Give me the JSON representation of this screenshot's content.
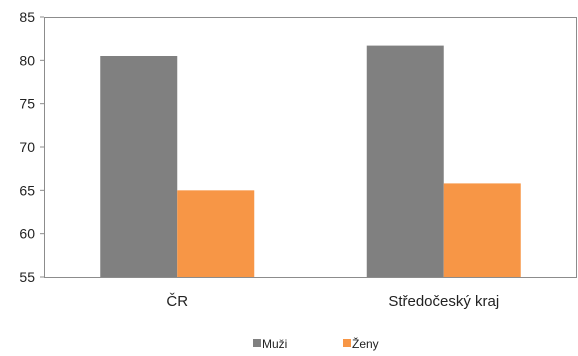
{
  "chart_data": {
    "type": "bar",
    "title": "",
    "xlabel": "",
    "ylabel": "",
    "categories": [
      "ČR",
      "Středočeský kraj"
    ],
    "series": [
      {
        "name": "Muži",
        "values": [
          80.5,
          81.7
        ],
        "color": "#808080"
      },
      {
        "name": "Ženy",
        "values": [
          65.0,
          65.8
        ],
        "color": "#F79646"
      }
    ],
    "ylim": [
      55,
      85
    ],
    "yticks": [
      55,
      60,
      65,
      70,
      75,
      80,
      85
    ],
    "grid": false,
    "legend": "bottom-center"
  }
}
